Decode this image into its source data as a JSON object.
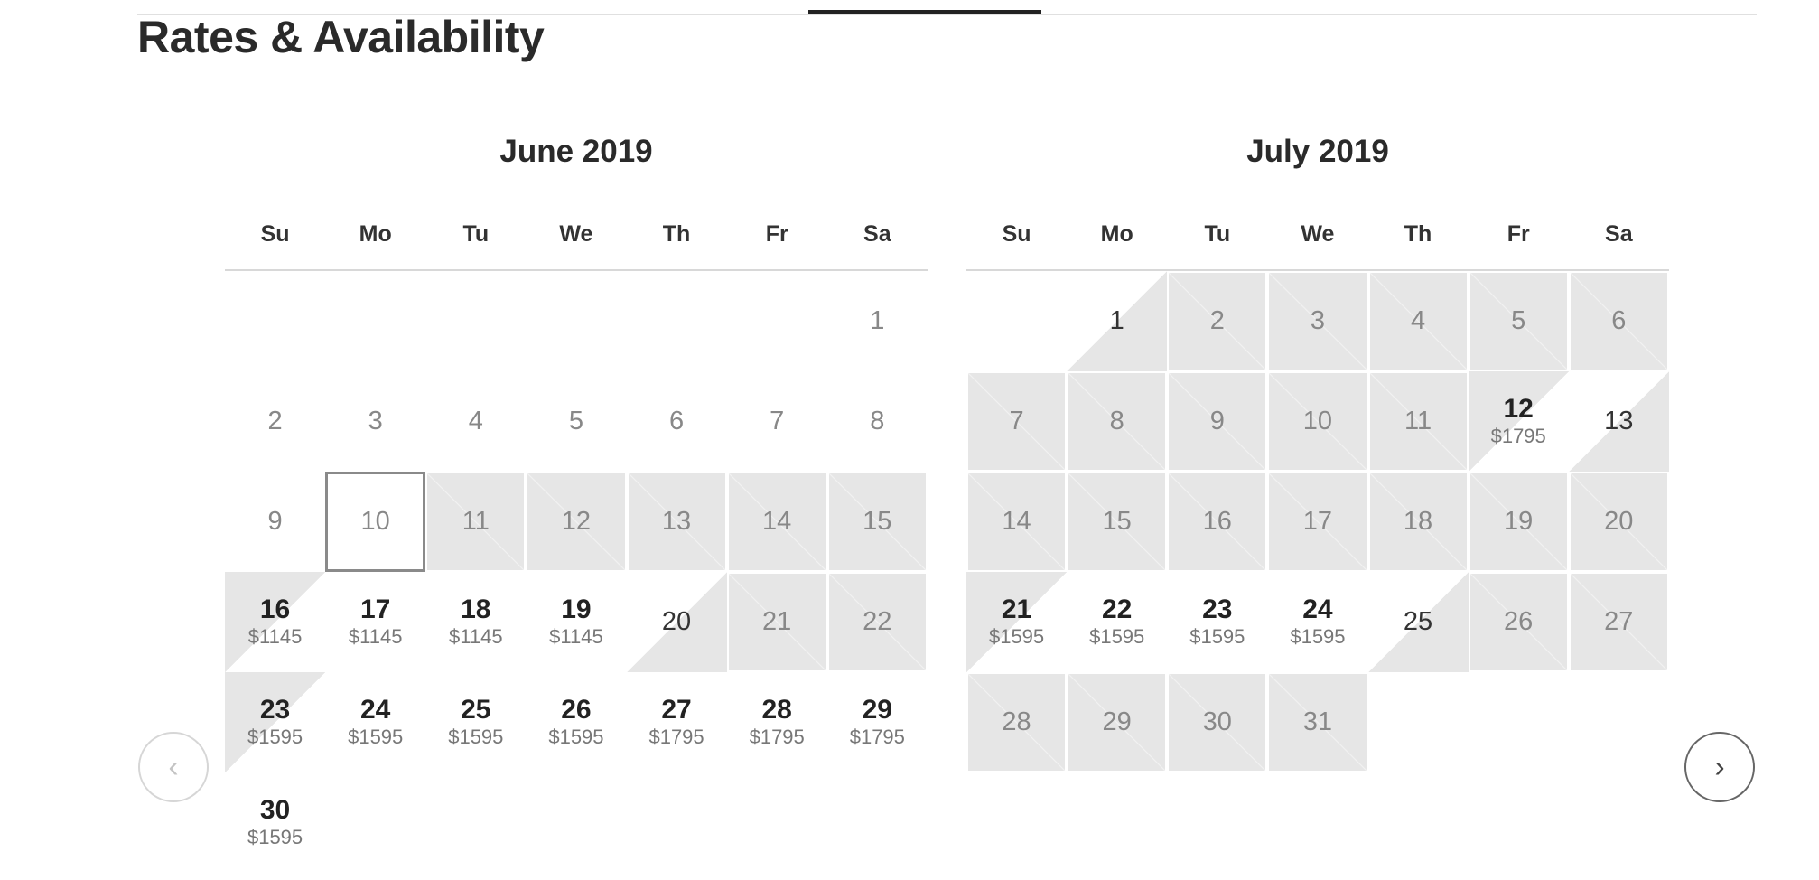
{
  "section_title": "Rates & Availability",
  "weekday_headers": [
    "Su",
    "Mo",
    "Tu",
    "We",
    "Th",
    "Fr",
    "Sa"
  ],
  "navigation": {
    "prev_icon": "chevron-left-icon",
    "next_icon": "chevron-right-icon",
    "prev_glyph": "‹",
    "next_glyph": "›"
  },
  "months": [
    {
      "title": "June 2019",
      "days": [
        {
          "d": "",
          "s": "empty"
        },
        {
          "d": "",
          "s": "empty"
        },
        {
          "d": "",
          "s": "empty"
        },
        {
          "d": "",
          "s": "empty"
        },
        {
          "d": "",
          "s": "empty"
        },
        {
          "d": "",
          "s": "empty"
        },
        {
          "d": "1",
          "s": "past"
        },
        {
          "d": "2",
          "s": "past"
        },
        {
          "d": "3",
          "s": "past"
        },
        {
          "d": "4",
          "s": "past"
        },
        {
          "d": "5",
          "s": "past"
        },
        {
          "d": "6",
          "s": "past"
        },
        {
          "d": "7",
          "s": "past"
        },
        {
          "d": "8",
          "s": "past"
        },
        {
          "d": "9",
          "s": "past"
        },
        {
          "d": "10",
          "s": "today"
        },
        {
          "d": "11",
          "s": "unavail"
        },
        {
          "d": "12",
          "s": "unavail"
        },
        {
          "d": "13",
          "s": "unavail"
        },
        {
          "d": "14",
          "s": "unavail"
        },
        {
          "d": "15",
          "s": "unavail"
        },
        {
          "d": "16",
          "s": "avail-checkin",
          "p": "$1145"
        },
        {
          "d": "17",
          "s": "avail",
          "p": "$1145"
        },
        {
          "d": "18",
          "s": "avail",
          "p": "$1145"
        },
        {
          "d": "19",
          "s": "avail",
          "p": "$1145"
        },
        {
          "d": "20",
          "s": "checkout"
        },
        {
          "d": "21",
          "s": "unavail"
        },
        {
          "d": "22",
          "s": "unavail"
        },
        {
          "d": "23",
          "s": "avail-checkin",
          "p": "$1595"
        },
        {
          "d": "24",
          "s": "avail",
          "p": "$1595"
        },
        {
          "d": "25",
          "s": "avail",
          "p": "$1595"
        },
        {
          "d": "26",
          "s": "avail",
          "p": "$1595"
        },
        {
          "d": "27",
          "s": "avail",
          "p": "$1795"
        },
        {
          "d": "28",
          "s": "avail",
          "p": "$1795"
        },
        {
          "d": "29",
          "s": "avail",
          "p": "$1795"
        },
        {
          "d": "30",
          "s": "avail",
          "p": "$1595"
        }
      ]
    },
    {
      "title": "July 2019",
      "days": [
        {
          "d": "",
          "s": "empty"
        },
        {
          "d": "1",
          "s": "checkout"
        },
        {
          "d": "2",
          "s": "unavail"
        },
        {
          "d": "3",
          "s": "unavail"
        },
        {
          "d": "4",
          "s": "unavail"
        },
        {
          "d": "5",
          "s": "unavail"
        },
        {
          "d": "6",
          "s": "unavail"
        },
        {
          "d": "7",
          "s": "unavail"
        },
        {
          "d": "8",
          "s": "unavail"
        },
        {
          "d": "9",
          "s": "unavail"
        },
        {
          "d": "10",
          "s": "unavail"
        },
        {
          "d": "11",
          "s": "unavail"
        },
        {
          "d": "12",
          "s": "avail-checkin",
          "p": "$1795"
        },
        {
          "d": "13",
          "s": "checkout"
        },
        {
          "d": "14",
          "s": "unavail"
        },
        {
          "d": "15",
          "s": "unavail"
        },
        {
          "d": "16",
          "s": "unavail"
        },
        {
          "d": "17",
          "s": "unavail"
        },
        {
          "d": "18",
          "s": "unavail"
        },
        {
          "d": "19",
          "s": "unavail"
        },
        {
          "d": "20",
          "s": "unavail"
        },
        {
          "d": "21",
          "s": "avail-checkin",
          "p": "$1595"
        },
        {
          "d": "22",
          "s": "avail",
          "p": "$1595"
        },
        {
          "d": "23",
          "s": "avail",
          "p": "$1595"
        },
        {
          "d": "24",
          "s": "avail",
          "p": "$1595"
        },
        {
          "d": "25",
          "s": "checkout"
        },
        {
          "d": "26",
          "s": "unavail"
        },
        {
          "d": "27",
          "s": "unavail"
        },
        {
          "d": "28",
          "s": "unavail"
        },
        {
          "d": "29",
          "s": "unavail"
        },
        {
          "d": "30",
          "s": "unavail"
        },
        {
          "d": "31",
          "s": "unavail"
        }
      ]
    }
  ]
}
